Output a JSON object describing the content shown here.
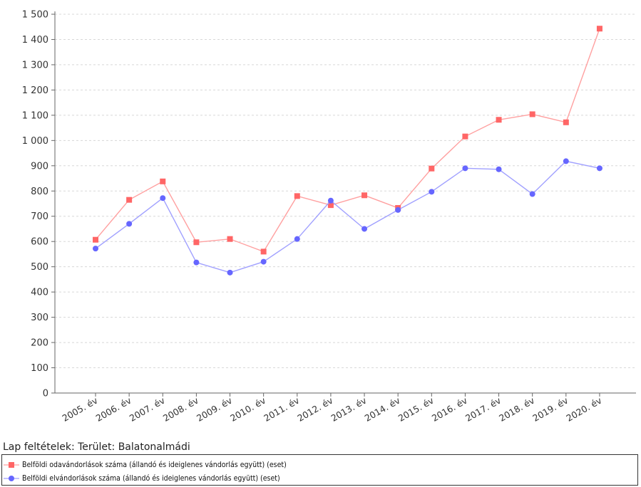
{
  "chart_data": {
    "type": "line",
    "categories": [
      "2005. év",
      "2006. év",
      "2007. év",
      "2008. év",
      "2009. év",
      "2010. év",
      "2011. év",
      "2012. év",
      "2013. év",
      "2014. év",
      "2015. év",
      "2016. év",
      "2017. év",
      "2018. év",
      "2019. év",
      "2020. év"
    ],
    "series": [
      {
        "name": "Belföldi odavándorlások száma (állandó és ideiglenes vándorlás együtt) (eset)",
        "color": "#ff6666",
        "line_color": "#ffa0a0",
        "marker": "square",
        "values": [
          607,
          765,
          838,
          597,
          610,
          560,
          780,
          744,
          783,
          733,
          889,
          1016,
          1082,
          1104,
          1072,
          1443
        ]
      },
      {
        "name": "Belföldi elvándorlások száma (állandó és ideiglenes vándorlás együtt) (eset)",
        "color": "#6666ff",
        "line_color": "#a0a0ff",
        "marker": "circle",
        "values": [
          572,
          670,
          772,
          517,
          477,
          520,
          610,
          762,
          650,
          725,
          797,
          890,
          886,
          788,
          918,
          890
        ]
      }
    ],
    "y_ticks": [
      "0",
      "100",
      "200",
      "300",
      "400",
      "500",
      "600",
      "700",
      "800",
      "900",
      "1 000",
      "1 100",
      "1 200",
      "1 300",
      "1 400",
      "1 500"
    ],
    "ylim": [
      0,
      1500
    ],
    "grid": true,
    "legend_position": "bottom"
  },
  "footnote": "Lap feltételek: Terület: Balatonalmádi"
}
